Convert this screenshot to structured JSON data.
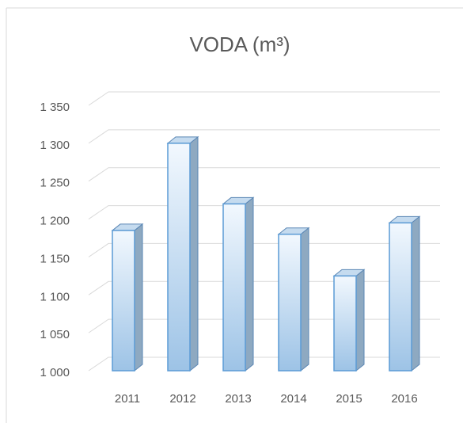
{
  "chart_data": {
    "type": "bar3d",
    "title": "VODA (m³)",
    "categories": [
      "2011",
      "2012",
      "2013",
      "2014",
      "2015",
      "2016"
    ],
    "values": [
      1185,
      1300,
      1220,
      1180,
      1125,
      1195
    ],
    "color": "#9dc3e6",
    "ylim": [
      1000,
      1350
    ],
    "yticks": [
      {
        "value": 1000,
        "label": "1 000"
      },
      {
        "value": 1050,
        "label": "1 050"
      },
      {
        "value": 1100,
        "label": "1 100"
      },
      {
        "value": 1150,
        "label": "1 150"
      },
      {
        "value": 1200,
        "label": "1 200"
      },
      {
        "value": 1250,
        "label": "1 250"
      },
      {
        "value": 1300,
        "label": "1 300"
      },
      {
        "value": 1350,
        "label": "1 350"
      }
    ],
    "grid": true
  }
}
